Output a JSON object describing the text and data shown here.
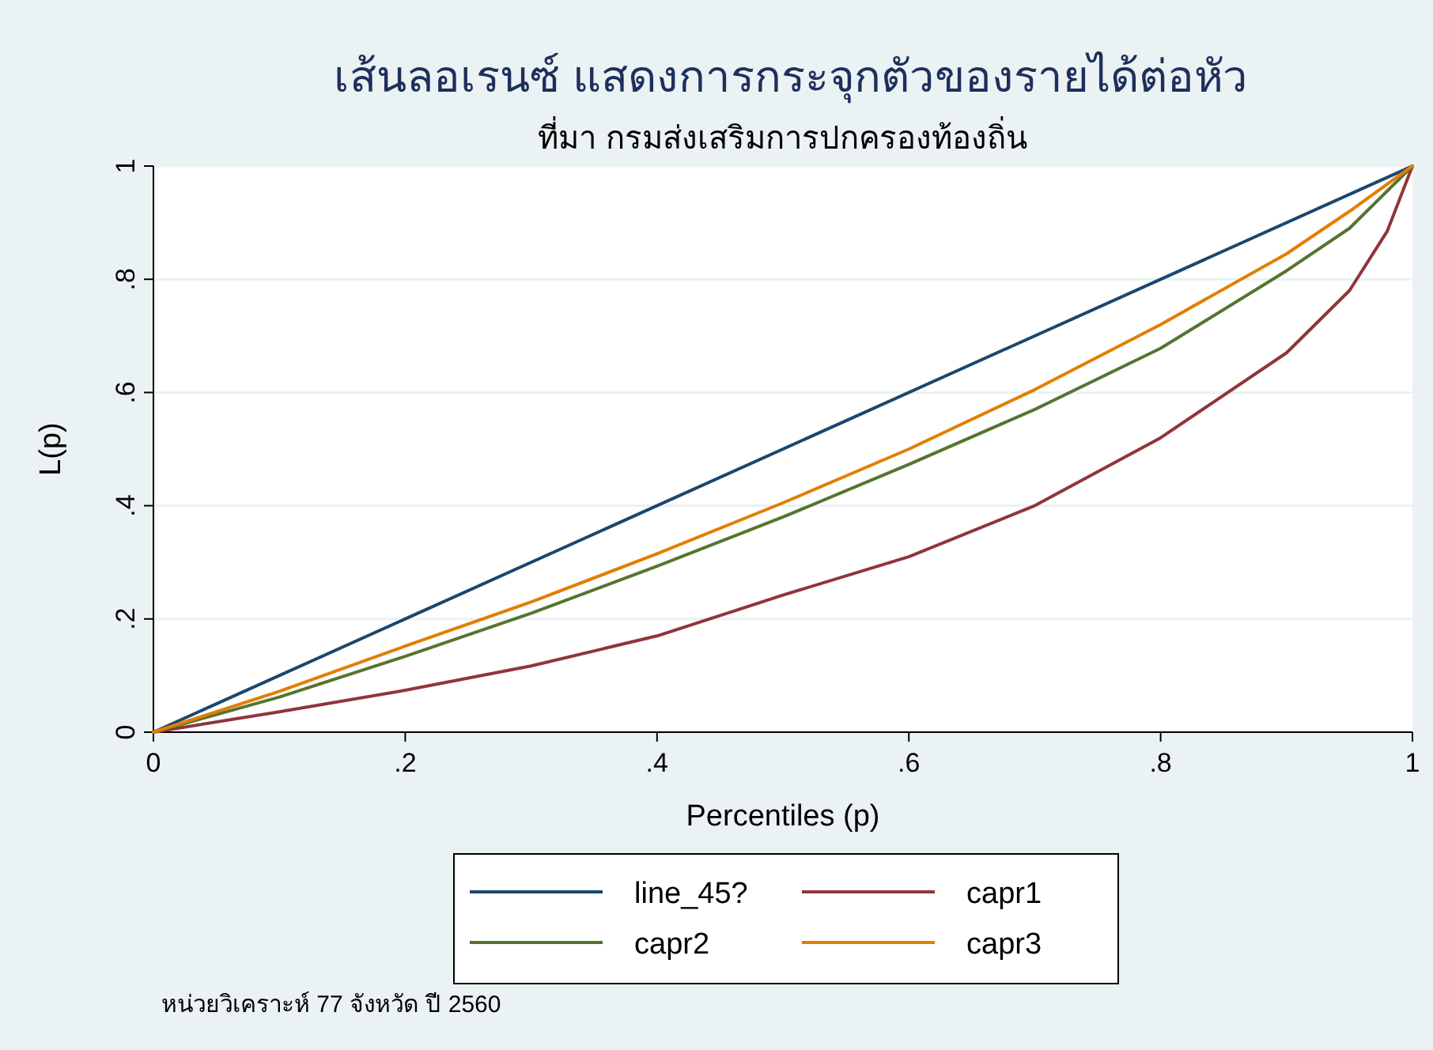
{
  "chart_data": {
    "type": "line",
    "title": "เส้นลอเรนซ์ แสดงการกระจุกตัวของรายได้ต่อหัว",
    "subtitle": "ที่มา กรมส่งเสริมการปกครองท้องถิ่น",
    "xlabel": "Percentiles (p)",
    "ylabel": "L(p)",
    "annotations": [
      "หน่วยวิเคราะห์ 77 จังหวัด ปี 2560"
    ],
    "xlim": [
      0,
      1
    ],
    "ylim": [
      0,
      1
    ],
    "xticks": [
      0,
      {
        "value": 0.2,
        "label": ".2"
      },
      {
        "value": 0.4,
        "label": ".4"
      },
      {
        "value": 0.6,
        "label": ".6"
      },
      {
        "value": 0.8,
        "label": ".8"
      },
      1
    ],
    "yticks": [
      0,
      {
        "value": 0.2,
        "label": ".2"
      },
      {
        "value": 0.4,
        "label": ".4"
      },
      {
        "value": 0.6,
        "label": ".6"
      },
      {
        "value": 0.8,
        "label": ".8"
      },
      1
    ],
    "grid": "y",
    "legend": "bottom",
    "marker": "none",
    "line_style": "solid",
    "series": [
      {
        "name": "line_45?",
        "color": "#1a476f",
        "x": [
          0,
          1
        ],
        "values": [
          0,
          1
        ]
      },
      {
        "name": "capr1",
        "color": "#90353b",
        "x": [
          0,
          0.1,
          0.2,
          0.3,
          0.4,
          0.5,
          0.6,
          0.7,
          0.8,
          0.9,
          0.95,
          0.98,
          1
        ],
        "values": [
          0,
          0.036,
          0.074,
          0.117,
          0.17,
          0.242,
          0.31,
          0.4,
          0.52,
          0.67,
          0.78,
          0.885,
          1
        ]
      },
      {
        "name": "capr2",
        "color": "#55752f",
        "x": [
          0,
          0.1,
          0.2,
          0.3,
          0.4,
          0.5,
          0.6,
          0.7,
          0.8,
          0.9,
          0.95,
          1
        ],
        "values": [
          0,
          0.062,
          0.134,
          0.21,
          0.293,
          0.38,
          0.473,
          0.57,
          0.678,
          0.815,
          0.89,
          1
        ]
      },
      {
        "name": "capr3",
        "color": "#e37e00",
        "x": [
          0,
          0.1,
          0.2,
          0.3,
          0.4,
          0.5,
          0.6,
          0.7,
          0.8,
          0.9,
          0.95,
          1
        ],
        "values": [
          0,
          0.072,
          0.152,
          0.23,
          0.315,
          0.405,
          0.5,
          0.605,
          0.72,
          0.845,
          0.92,
          1
        ]
      }
    ]
  }
}
